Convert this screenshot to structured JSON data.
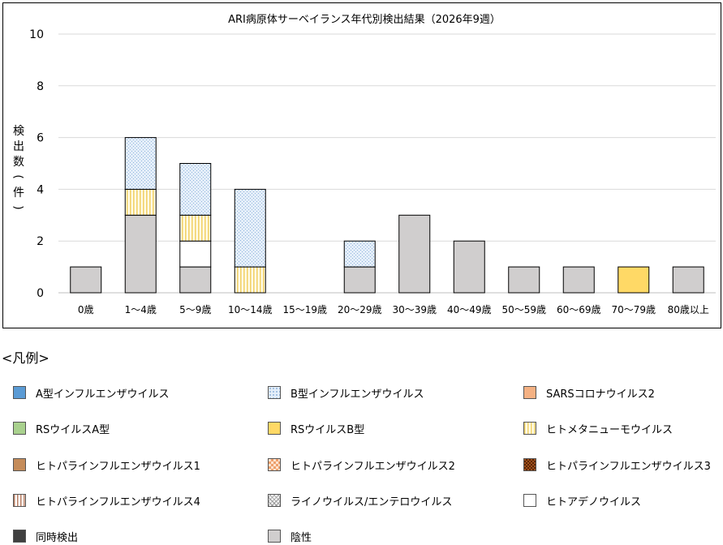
{
  "chart_data": {
    "type": "bar",
    "stacked": true,
    "title": "ARI病原体サーベイランス年代別検出結果（2026年9週）",
    "ylabel": "検出数(件)",
    "xlabel": "",
    "ylim": [
      0,
      10
    ],
    "yticks": [
      "0",
      "2",
      "4",
      "6",
      "8",
      "10"
    ],
    "grid": true,
    "categories": [
      "0歳",
      "1～4歳",
      "5～9歳",
      "10～14歳",
      "15～19歳",
      "20～29歳",
      "30～39歳",
      "40～49歳",
      "50～59歳",
      "60～69歳",
      "70～79歳",
      "80歳以上"
    ],
    "series": [
      {
        "name": "陰性",
        "values": [
          1,
          3,
          1,
          0,
          0,
          1,
          3,
          2,
          1,
          1,
          0,
          1
        ]
      },
      {
        "name": "ヒトアデノウイルス",
        "values": [
          0,
          0,
          1,
          0,
          0,
          0,
          0,
          0,
          0,
          0,
          0,
          0
        ]
      },
      {
        "name": "ヒトメタニューモウイルス",
        "values": [
          0,
          1,
          1,
          1,
          0,
          0,
          0,
          0,
          0,
          0,
          0,
          0
        ]
      },
      {
        "name": "B型インフルエンザウイルス",
        "values": [
          0,
          2,
          2,
          3,
          0,
          1,
          0,
          0,
          0,
          0,
          0,
          0
        ]
      },
      {
        "name": "RSウイルスB型",
        "values": [
          0,
          0,
          0,
          0,
          0,
          0,
          0,
          0,
          0,
          0,
          1,
          0
        ]
      }
    ]
  },
  "legend": {
    "heading": "<凡例>",
    "items": [
      {
        "label": "A型インフルエンザウイルス",
        "icon": "solid-blue-swatch",
        "color": "#5b9bd5"
      },
      {
        "label": "B型インフルエンザウイルス",
        "icon": "dotted-light-blue-swatch",
        "color": "#dde9f7"
      },
      {
        "label": "SARSコロナウイルス2",
        "icon": "solid-salmon-swatch",
        "color": "#f4b183"
      },
      {
        "label": "RSウイルスA型",
        "icon": "solid-green-swatch",
        "color": "#a9d18e"
      },
      {
        "label": "RSウイルスB型",
        "icon": "solid-yellow-swatch",
        "color": "#ffd966"
      },
      {
        "label": "ヒトメタニューモウイルス",
        "icon": "yellow-vertical-stripe-swatch",
        "color": "#ffe699"
      },
      {
        "label": "ヒトパラインフルエンザウイルス1",
        "icon": "solid-brown-swatch",
        "color": "#c58c5a"
      },
      {
        "label": "ヒトパラインフルエンザウイルス2",
        "icon": "orange-checker-swatch",
        "color": "#f0a070"
      },
      {
        "label": "ヒトパラインフルエンザウイルス3",
        "icon": "dark-brown-checker-swatch",
        "color": "#843c0c"
      },
      {
        "label": "ヒトパラインフルエンザウイルス4",
        "icon": "brown-vertical-stripe-swatch",
        "color": "#c8a08a"
      },
      {
        "label": "ライノウイルス/エンテロウイルス",
        "icon": "gray-crosshatch-swatch",
        "color": "#bfbfbf"
      },
      {
        "label": "ヒトアデノウイルス",
        "icon": "white-swatch",
        "color": "#ffffff"
      },
      {
        "label": "同時検出",
        "icon": "dark-gray-swatch",
        "color": "#404040"
      },
      {
        "label": "陰性",
        "icon": "light-gray-swatch",
        "color": "#d0cece"
      }
    ]
  }
}
